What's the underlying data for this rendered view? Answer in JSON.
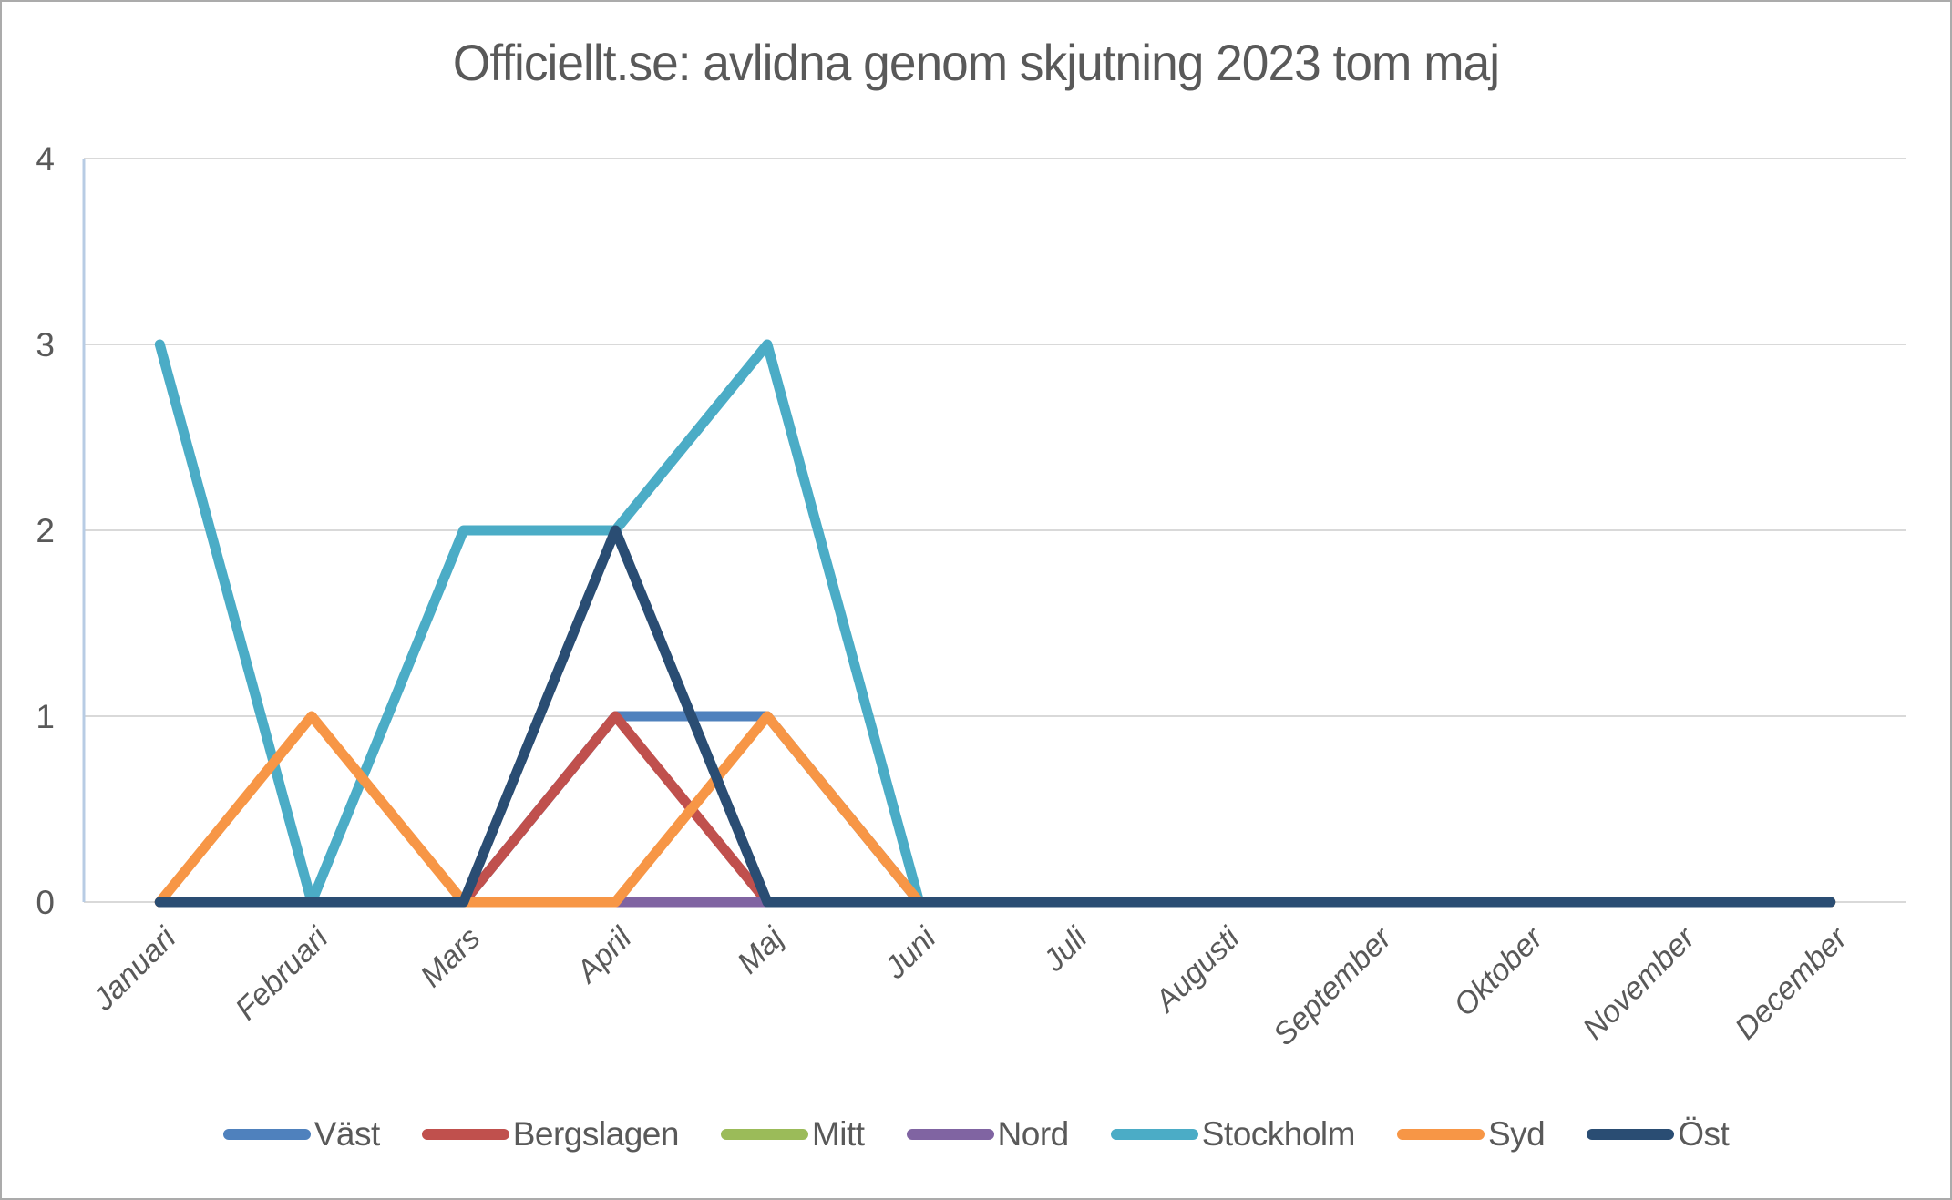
{
  "frame": {
    "background_color": "#ffffff",
    "border_color": "#ababab"
  },
  "text_color": "#595959",
  "chart_data": {
    "type": "line",
    "title": "Officiellt.se: avlidna genom skjutning 2023 tom maj",
    "categories": [
      "Januari",
      "Februari",
      "Mars",
      "April",
      "Maj",
      "Juni",
      "Juli",
      "Augusti",
      "September",
      "Oktober",
      "November",
      "December"
    ],
    "series": [
      {
        "name": "Väst",
        "color": "#4F81BD",
        "values": [
          0,
          0,
          0,
          1,
          1,
          0,
          0,
          0,
          0,
          0,
          0,
          0
        ]
      },
      {
        "name": "Bergslagen",
        "color": "#C0504D",
        "values": [
          0,
          0,
          0,
          1,
          0,
          0,
          0,
          0,
          0,
          0,
          0,
          0
        ]
      },
      {
        "name": "Mitt",
        "color": "#9BBB59",
        "values": [
          0,
          0,
          0,
          0,
          0,
          0,
          0,
          0,
          0,
          0,
          0,
          0
        ]
      },
      {
        "name": "Nord",
        "color": "#8064A2",
        "values": [
          0,
          0,
          0,
          0,
          0,
          0,
          0,
          0,
          0,
          0,
          0,
          0
        ]
      },
      {
        "name": "Stockholm",
        "color": "#4BACC6",
        "values": [
          3,
          0,
          2,
          2,
          3,
          0,
          0,
          0,
          0,
          0,
          0,
          0
        ]
      },
      {
        "name": "Syd",
        "color": "#F79646",
        "values": [
          0,
          1,
          0,
          0,
          1,
          0,
          0,
          0,
          0,
          0,
          0,
          0
        ]
      },
      {
        "name": "Öst",
        "color": "#2A4D73",
        "values": [
          0,
          0,
          0,
          2,
          0,
          0,
          0,
          0,
          0,
          0,
          0,
          0
        ]
      }
    ],
    "y_ticks": [
      "0",
      "1",
      "2",
      "3",
      "4"
    ],
    "ylim": [
      0,
      4
    ],
    "xlabel": "",
    "ylabel": "",
    "grid": "horizontal",
    "gridline_color": "#D9D9D9",
    "y_axis_line_color": "#B8CCE4",
    "legend_position": "bottom"
  }
}
